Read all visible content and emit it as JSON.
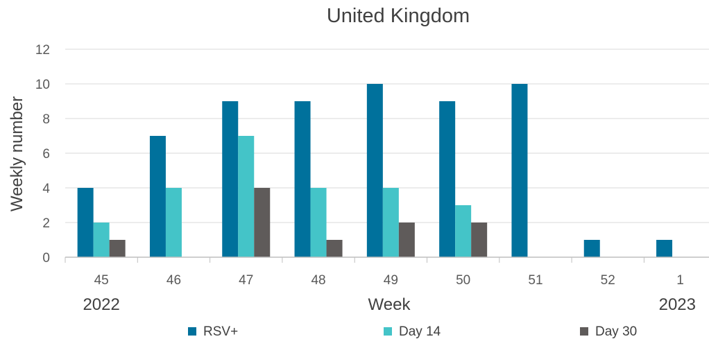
{
  "chart_data": {
    "type": "bar",
    "title": "United Kingdom",
    "xlabel": "Week",
    "ylabel": "Weekly number",
    "categories": [
      "45",
      "46",
      "47",
      "48",
      "49",
      "50",
      "51",
      "52",
      "1"
    ],
    "year_labels": [
      {
        "label": "2022",
        "category": "45"
      },
      {
        "label": "2023",
        "category": "1"
      }
    ],
    "series": [
      {
        "name": "RSV+",
        "color": "#00719C",
        "values": [
          4,
          7,
          9,
          9,
          10,
          9,
          10,
          1,
          1
        ]
      },
      {
        "name": "Day 14",
        "color": "#44C4C8",
        "values": [
          2,
          4,
          7,
          4,
          4,
          3,
          0,
          0,
          0
        ]
      },
      {
        "name": "Day 30",
        "color": "#5F5B5A",
        "values": [
          1,
          0,
          4,
          1,
          2,
          2,
          0,
          0,
          0
        ]
      }
    ],
    "ylim": [
      0,
      12
    ],
    "yticks": [
      0,
      2,
      4,
      6,
      8,
      10,
      12
    ],
    "grid": true,
    "legend": "bottom"
  }
}
